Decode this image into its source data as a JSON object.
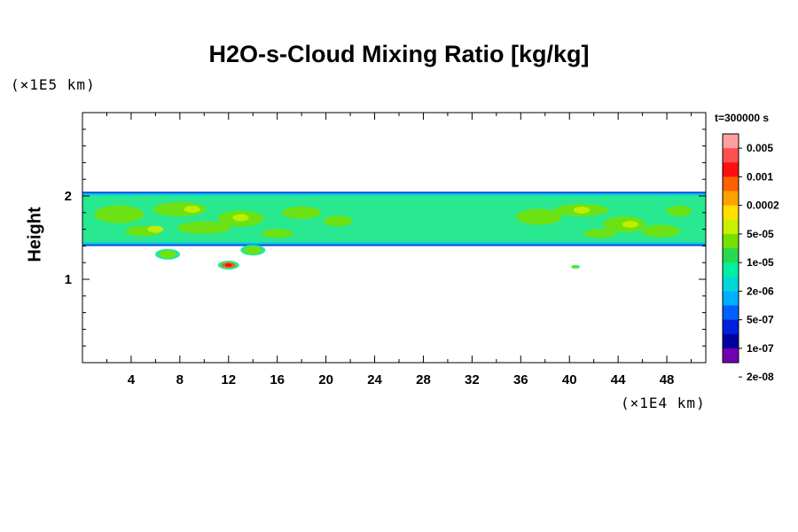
{
  "chart_data": {
    "type": "heatmap",
    "title": "H2O-s-Cloud Mixing Ratio [kg/kg]",
    "ylabel": "Height",
    "xlabel": "",
    "x_unit": "(×1E4 km)",
    "y_unit": "(×1E5 km)",
    "xlim": [
      0,
      51.2
    ],
    "ylim": [
      0,
      3
    ],
    "x_ticks": [
      "4",
      "8",
      "12",
      "16",
      "20",
      "24",
      "28",
      "32",
      "36",
      "40",
      "44",
      "48"
    ],
    "y_ticks": [
      "1",
      "2"
    ],
    "time_label": "t=300000 s",
    "colorbar": {
      "levels": [
        "0.005",
        "0.001",
        "0.0002",
        "5e-05",
        "1e-05",
        "2e-06",
        "5e-07",
        "1e-07",
        "2e-08"
      ],
      "colors": [
        "#ffa0a0",
        "#ff5050",
        "#ff1010",
        "#ff6000",
        "#ffa000",
        "#ffe000",
        "#c8f000",
        "#78e000",
        "#28d850",
        "#00f0a0",
        "#00d8d8",
        "#00b0ff",
        "#0060ff",
        "#0020e0",
        "#0000a0",
        "#7000b0"
      ]
    },
    "layer": {
      "bottom": 1.4,
      "top": 2.05,
      "background_level": "2e-06",
      "dominant_level": "5e-05",
      "max_level": "0.001"
    },
    "features": [
      {
        "x": 12,
        "y": 1.17,
        "level": "0.001"
      },
      {
        "x": 14,
        "y": 1.35,
        "level": "5e-05"
      },
      {
        "x": 7,
        "y": 1.3,
        "level": "5e-05"
      },
      {
        "x": 40.5,
        "y": 1.15,
        "level": "5e-05"
      }
    ]
  }
}
